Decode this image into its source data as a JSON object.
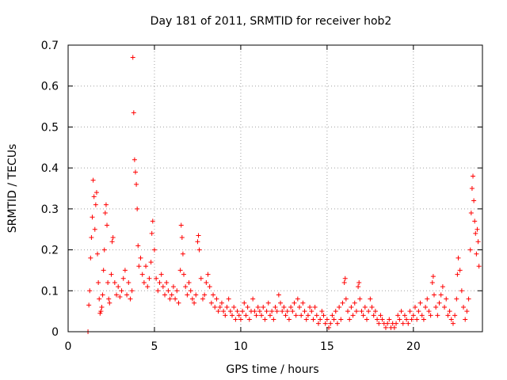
{
  "chart_data": {
    "type": "scatter",
    "title": "Day 181 of 2011, SRMTID for receiver hob2",
    "xlabel": "GPS time / hours",
    "ylabel": "SRMTID / TECUs",
    "xlim": [
      0,
      24
    ],
    "ylim": [
      0,
      0.7
    ],
    "x_ticks": [
      0,
      5,
      10,
      15,
      20
    ],
    "x_tick_labels": [
      "0",
      "5",
      "10",
      "15",
      "20"
    ],
    "y_ticks": [
      0,
      0.1,
      0.2,
      0.3,
      0.4,
      0.5,
      0.6,
      0.7
    ],
    "y_tick_labels": [
      "0",
      "0.1",
      "0.2",
      "0.3",
      "0.4",
      "0.5",
      "0.6",
      "0.7"
    ],
    "grid": true,
    "marker": "plus",
    "series_color": "#ff0000",
    "series": [
      {
        "name": "SRMTID",
        "points": [
          [
            1.15,
            0.0
          ],
          [
            1.2,
            0.065
          ],
          [
            1.25,
            0.1
          ],
          [
            1.3,
            0.18
          ],
          [
            1.35,
            0.23
          ],
          [
            1.4,
            0.28
          ],
          [
            1.45,
            0.37
          ],
          [
            1.5,
            0.33
          ],
          [
            1.55,
            0.25
          ],
          [
            1.6,
            0.31
          ],
          [
            1.65,
            0.34
          ],
          [
            1.7,
            0.19
          ],
          [
            1.75,
            0.12
          ],
          [
            1.8,
            0.08
          ],
          [
            1.85,
            0.045
          ],
          [
            1.9,
            0.05
          ],
          [
            1.95,
            0.06
          ],
          [
            2.0,
            0.09
          ],
          [
            2.05,
            0.15
          ],
          [
            2.1,
            0.2
          ],
          [
            2.15,
            0.29
          ],
          [
            2.2,
            0.31
          ],
          [
            2.25,
            0.26
          ],
          [
            2.3,
            0.12
          ],
          [
            2.35,
            0.08
          ],
          [
            2.4,
            0.07
          ],
          [
            2.5,
            0.14
          ],
          [
            2.55,
            0.22
          ],
          [
            2.6,
            0.23
          ],
          [
            2.7,
            0.12
          ],
          [
            2.8,
            0.09
          ],
          [
            2.9,
            0.11
          ],
          [
            3.0,
            0.085
          ],
          [
            3.1,
            0.1
          ],
          [
            3.2,
            0.13
          ],
          [
            3.3,
            0.15
          ],
          [
            3.4,
            0.09
          ],
          [
            3.5,
            0.12
          ],
          [
            3.6,
            0.08
          ],
          [
            3.7,
            0.1
          ],
          [
            3.75,
            0.67
          ],
          [
            3.8,
            0.535
          ],
          [
            3.85,
            0.42
          ],
          [
            3.9,
            0.39
          ],
          [
            3.95,
            0.36
          ],
          [
            4.0,
            0.3
          ],
          [
            4.05,
            0.21
          ],
          [
            4.1,
            0.16
          ],
          [
            4.2,
            0.18
          ],
          [
            4.3,
            0.14
          ],
          [
            4.4,
            0.12
          ],
          [
            4.5,
            0.16
          ],
          [
            4.6,
            0.11
          ],
          [
            4.7,
            0.13
          ],
          [
            4.8,
            0.17
          ],
          [
            4.85,
            0.24
          ],
          [
            4.9,
            0.27
          ],
          [
            5.0,
            0.2
          ],
          [
            5.1,
            0.13
          ],
          [
            5.2,
            0.1
          ],
          [
            5.3,
            0.12
          ],
          [
            5.4,
            0.14
          ],
          [
            5.5,
            0.11
          ],
          [
            5.6,
            0.09
          ],
          [
            5.7,
            0.12
          ],
          [
            5.8,
            0.1
          ],
          [
            5.9,
            0.08
          ],
          [
            6.0,
            0.09
          ],
          [
            6.1,
            0.11
          ],
          [
            6.2,
            0.08
          ],
          [
            6.3,
            0.1
          ],
          [
            6.4,
            0.07
          ],
          [
            6.5,
            0.15
          ],
          [
            6.55,
            0.26
          ],
          [
            6.6,
            0.23
          ],
          [
            6.65,
            0.19
          ],
          [
            6.7,
            0.14
          ],
          [
            6.8,
            0.11
          ],
          [
            6.9,
            0.09
          ],
          [
            7.0,
            0.12
          ],
          [
            7.1,
            0.1
          ],
          [
            7.2,
            0.08
          ],
          [
            7.3,
            0.07
          ],
          [
            7.4,
            0.09
          ],
          [
            7.5,
            0.22
          ],
          [
            7.55,
            0.235
          ],
          [
            7.6,
            0.2
          ],
          [
            7.7,
            0.13
          ],
          [
            7.8,
            0.08
          ],
          [
            7.9,
            0.09
          ],
          [
            8.0,
            0.12
          ],
          [
            8.1,
            0.14
          ],
          [
            8.2,
            0.11
          ],
          [
            8.3,
            0.07
          ],
          [
            8.4,
            0.09
          ],
          [
            8.5,
            0.06
          ],
          [
            8.6,
            0.08
          ],
          [
            8.7,
            0.05
          ],
          [
            8.8,
            0.06
          ],
          [
            8.9,
            0.07
          ],
          [
            9.0,
            0.05
          ],
          [
            9.1,
            0.04
          ],
          [
            9.2,
            0.06
          ],
          [
            9.3,
            0.08
          ],
          [
            9.4,
            0.05
          ],
          [
            9.5,
            0.04
          ],
          [
            9.6,
            0.06
          ],
          [
            9.7,
            0.03
          ],
          [
            9.8,
            0.05
          ],
          [
            9.9,
            0.04
          ],
          [
            10.0,
            0.03
          ],
          [
            10.1,
            0.05
          ],
          [
            10.2,
            0.07
          ],
          [
            10.3,
            0.04
          ],
          [
            10.4,
            0.06
          ],
          [
            10.5,
            0.03
          ],
          [
            10.6,
            0.05
          ],
          [
            10.7,
            0.08
          ],
          [
            10.8,
            0.05
          ],
          [
            10.9,
            0.04
          ],
          [
            11.0,
            0.06
          ],
          [
            11.1,
            0.05
          ],
          [
            11.2,
            0.04
          ],
          [
            11.3,
            0.06
          ],
          [
            11.4,
            0.03
          ],
          [
            11.5,
            0.05
          ],
          [
            11.6,
            0.07
          ],
          [
            11.7,
            0.04
          ],
          [
            11.8,
            0.05
          ],
          [
            11.9,
            0.03
          ],
          [
            12.0,
            0.06
          ],
          [
            12.1,
            0.05
          ],
          [
            12.2,
            0.09
          ],
          [
            12.3,
            0.07
          ],
          [
            12.4,
            0.05
          ],
          [
            12.5,
            0.06
          ],
          [
            12.6,
            0.04
          ],
          [
            12.7,
            0.05
          ],
          [
            12.8,
            0.03
          ],
          [
            12.9,
            0.06
          ],
          [
            13.0,
            0.05
          ],
          [
            13.1,
            0.07
          ],
          [
            13.2,
            0.04
          ],
          [
            13.3,
            0.08
          ],
          [
            13.4,
            0.06
          ],
          [
            13.5,
            0.04
          ],
          [
            13.6,
            0.07
          ],
          [
            13.7,
            0.05
          ],
          [
            13.8,
            0.03
          ],
          [
            13.9,
            0.04
          ],
          [
            14.0,
            0.06
          ],
          [
            14.1,
            0.05
          ],
          [
            14.2,
            0.03
          ],
          [
            14.3,
            0.06
          ],
          [
            14.4,
            0.04
          ],
          [
            14.5,
            0.02
          ],
          [
            14.6,
            0.03
          ],
          [
            14.7,
            0.05
          ],
          [
            14.8,
            0.04
          ],
          [
            14.9,
            0.02
          ],
          [
            15.0,
            0.03
          ],
          [
            15.1,
            0.01
          ],
          [
            15.2,
            0.02
          ],
          [
            15.3,
            0.04
          ],
          [
            15.4,
            0.03
          ],
          [
            15.5,
            0.05
          ],
          [
            15.6,
            0.02
          ],
          [
            15.7,
            0.06
          ],
          [
            15.8,
            0.03
          ],
          [
            15.9,
            0.07
          ],
          [
            16.0,
            0.12
          ],
          [
            16.05,
            0.13
          ],
          [
            16.1,
            0.08
          ],
          [
            16.2,
            0.05
          ],
          [
            16.3,
            0.03
          ],
          [
            16.4,
            0.06
          ],
          [
            16.5,
            0.04
          ],
          [
            16.6,
            0.07
          ],
          [
            16.7,
            0.05
          ],
          [
            16.8,
            0.11
          ],
          [
            16.85,
            0.12
          ],
          [
            16.9,
            0.08
          ],
          [
            17.0,
            0.05
          ],
          [
            17.1,
            0.04
          ],
          [
            17.2,
            0.06
          ],
          [
            17.3,
            0.03
          ],
          [
            17.4,
            0.05
          ],
          [
            17.5,
            0.08
          ],
          [
            17.6,
            0.06
          ],
          [
            17.7,
            0.04
          ],
          [
            17.8,
            0.05
          ],
          [
            17.9,
            0.03
          ],
          [
            18.0,
            0.02
          ],
          [
            18.1,
            0.04
          ],
          [
            18.2,
            0.03
          ],
          [
            18.3,
            0.02
          ],
          [
            18.4,
            0.01
          ],
          [
            18.5,
            0.02
          ],
          [
            18.6,
            0.03
          ],
          [
            18.7,
            0.01
          ],
          [
            18.8,
            0.02
          ],
          [
            18.9,
            0.01
          ],
          [
            19.0,
            0.02
          ],
          [
            19.1,
            0.04
          ],
          [
            19.2,
            0.03
          ],
          [
            19.3,
            0.05
          ],
          [
            19.4,
            0.02
          ],
          [
            19.5,
            0.04
          ],
          [
            19.6,
            0.03
          ],
          [
            19.7,
            0.02
          ],
          [
            19.8,
            0.05
          ],
          [
            19.9,
            0.03
          ],
          [
            20.0,
            0.04
          ],
          [
            20.1,
            0.06
          ],
          [
            20.2,
            0.03
          ],
          [
            20.3,
            0.05
          ],
          [
            20.4,
            0.07
          ],
          [
            20.5,
            0.04
          ],
          [
            20.6,
            0.03
          ],
          [
            20.7,
            0.06
          ],
          [
            20.8,
            0.08
          ],
          [
            20.9,
            0.05
          ],
          [
            21.0,
            0.04
          ],
          [
            21.1,
            0.12
          ],
          [
            21.15,
            0.135
          ],
          [
            21.2,
            0.09
          ],
          [
            21.3,
            0.06
          ],
          [
            21.4,
            0.04
          ],
          [
            21.5,
            0.07
          ],
          [
            21.6,
            0.09
          ],
          [
            21.7,
            0.11
          ],
          [
            21.8,
            0.06
          ],
          [
            21.9,
            0.08
          ],
          [
            22.0,
            0.04
          ],
          [
            22.1,
            0.05
          ],
          [
            22.2,
            0.03
          ],
          [
            22.3,
            0.02
          ],
          [
            22.4,
            0.04
          ],
          [
            22.5,
            0.08
          ],
          [
            22.55,
            0.14
          ],
          [
            22.6,
            0.18
          ],
          [
            22.7,
            0.15
          ],
          [
            22.8,
            0.1
          ],
          [
            22.9,
            0.06
          ],
          [
            23.0,
            0.03
          ],
          [
            23.1,
            0.05
          ],
          [
            23.2,
            0.08
          ],
          [
            23.3,
            0.2
          ],
          [
            23.35,
            0.29
          ],
          [
            23.4,
            0.35
          ],
          [
            23.45,
            0.38
          ],
          [
            23.5,
            0.32
          ],
          [
            23.55,
            0.27
          ],
          [
            23.6,
            0.24
          ],
          [
            23.65,
            0.19
          ],
          [
            23.7,
            0.25
          ],
          [
            23.75,
            0.22
          ],
          [
            23.8,
            0.16
          ]
        ]
      }
    ]
  }
}
